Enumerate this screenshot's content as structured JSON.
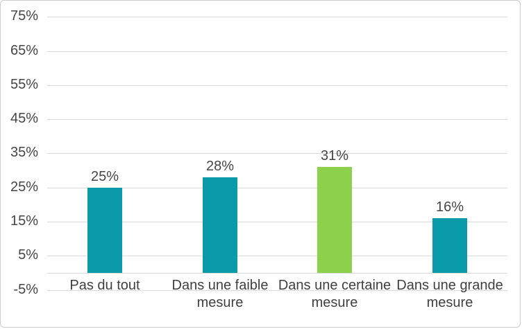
{
  "chart_data": {
    "type": "bar",
    "categories": [
      "Pas du tout",
      "Dans une faible mesure",
      "Dans une certaine mesure",
      "Dans une grande mesure"
    ],
    "values": [
      25,
      28,
      31,
      16
    ],
    "data_labels": [
      "25%",
      "28%",
      "31%",
      "16%"
    ],
    "yticks": [
      75,
      65,
      55,
      45,
      35,
      25,
      15,
      5,
      -5
    ],
    "ytick_labels": [
      "75%",
      "65%",
      "55%",
      "45%",
      "35%",
      "25%",
      "15%",
      "5%",
      "-5%"
    ],
    "ylim": [
      -5,
      75
    ],
    "bar_colors": [
      "#0b9aa9",
      "#0b9aa9",
      "#8dd04c",
      "#0b9aa9"
    ],
    "grid": true,
    "legend": "none",
    "title": "",
    "xlabel": "",
    "ylabel": ""
  },
  "colors": {
    "teal": "#0b9aa9",
    "green": "#8dd04c",
    "text": "#454545",
    "gridline": "#d9d9d9",
    "border": "#cbcbcb",
    "background": "#ffffff"
  }
}
